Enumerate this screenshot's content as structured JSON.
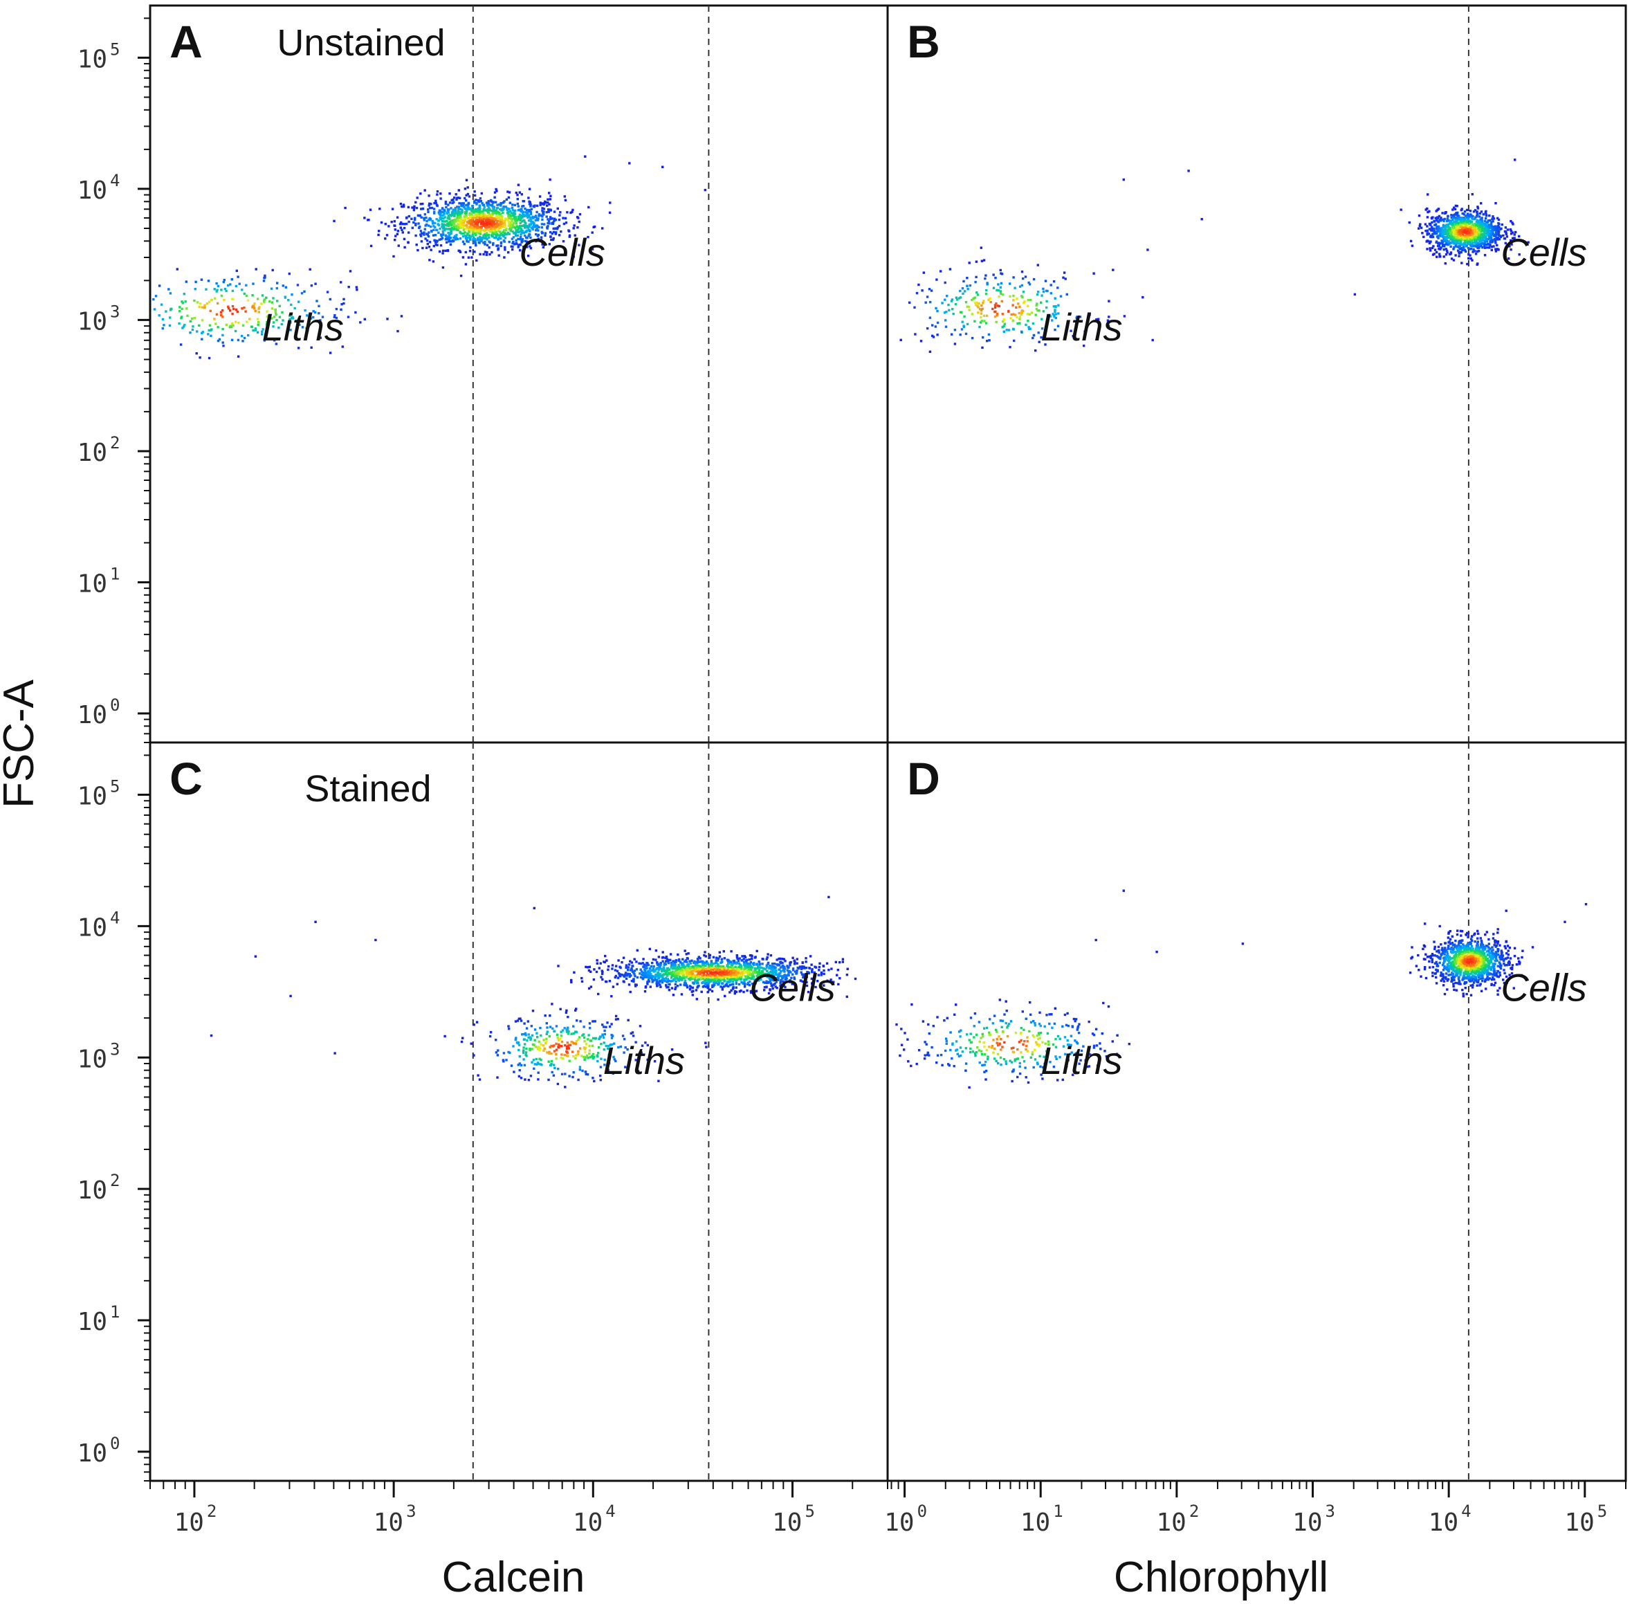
{
  "chart_data": {
    "type": "scatter",
    "figure": {
      "ylabel": "FSC-A",
      "xlabels": [
        "Calcein",
        "Chlorophyll"
      ]
    },
    "panels": [
      {
        "id": "A",
        "letter": "A",
        "note": "Unstained",
        "xlabel": "Calcein",
        "ylabel": "FSC-A",
        "xlim": [
          60,
          300000
        ],
        "ylim": [
          0.6,
          250000
        ],
        "xticks": [
          100,
          1000,
          10000,
          100000
        ],
        "yticks": [
          1,
          10,
          100,
          1000,
          10000,
          100000
        ],
        "gates_x": [
          2500,
          38000
        ],
        "populations": [
          {
            "name": "Cells",
            "label": "Cells",
            "center": [
              2800,
              5600
            ],
            "spread": [
              0.2,
              0.1
            ],
            "n": 1400,
            "label_at": [
              7000,
              2600
            ]
          },
          {
            "name": "Liths",
            "label": "Liths",
            "center": [
              150,
              1200
            ],
            "spread": [
              0.3,
              0.15
            ],
            "n": 320,
            "label_at": [
              350,
              700
            ]
          }
        ],
        "outliers": [
          [
            9000,
            18000
          ],
          [
            15000,
            16000
          ],
          [
            22000,
            15000
          ],
          [
            36000,
            10000
          ],
          [
            12000,
            8000
          ],
          [
            6000,
            12000
          ]
        ]
      },
      {
        "id": "B",
        "letter": "B",
        "xlabel": "Chlorophyll",
        "ylabel": "FSC-A",
        "xlim": [
          0.75,
          200000
        ],
        "ylim": [
          0.6,
          250000
        ],
        "xticks": [
          1,
          10,
          100,
          1000,
          10000,
          100000
        ],
        "yticks": [
          1,
          10,
          100,
          1000,
          10000,
          100000
        ],
        "gates_x": [
          14000
        ],
        "populations": [
          {
            "name": "Cells",
            "label": "Cells",
            "center": [
              13000,
              4800
            ],
            "spread": [
              0.14,
              0.08
            ],
            "n": 1100,
            "label_at": [
              50000,
              2600
            ]
          },
          {
            "name": "Liths",
            "label": "Liths",
            "center": [
              5,
              1250
            ],
            "spread": [
              0.35,
              0.14
            ],
            "n": 300,
            "label_at": [
              20,
              700
            ]
          }
        ],
        "outliers": [
          [
            40,
            12000
          ],
          [
            120,
            14000
          ],
          [
            150,
            6000
          ],
          [
            30000,
            17000
          ],
          [
            2000,
            1600
          ],
          [
            60,
            3500
          ]
        ]
      },
      {
        "id": "C",
        "letter": "C",
        "note": "Stained",
        "xlabel": "Calcein",
        "ylabel": "FSC-A",
        "xlim": [
          60,
          300000
        ],
        "ylim": [
          0.6,
          250000
        ],
        "xticks": [
          100,
          1000,
          10000,
          100000
        ],
        "yticks": [
          1,
          10,
          100,
          1000,
          10000,
          100000
        ],
        "gates_x": [
          2500,
          38000
        ],
        "populations": [
          {
            "name": "Cells",
            "label": "Cells",
            "center": [
              40000,
              4500
            ],
            "spread": [
              0.26,
              0.06
            ],
            "n": 1500,
            "label_at": [
              100000,
              2700
            ]
          },
          {
            "name": "Liths",
            "label": "Liths",
            "center": [
              7000,
              1200
            ],
            "spread": [
              0.2,
              0.12
            ],
            "n": 360,
            "label_at": [
              18000,
              750
            ]
          }
        ],
        "outliers": [
          [
            200,
            6000
          ],
          [
            400,
            11000
          ],
          [
            300,
            3000
          ],
          [
            800,
            8000
          ],
          [
            5000,
            14000
          ],
          [
            150000,
            17000
          ],
          [
            120,
            1500
          ],
          [
            500,
            1100
          ]
        ]
      },
      {
        "id": "D",
        "letter": "D",
        "xlabel": "Chlorophyll",
        "ylabel": "FSC-A",
        "xlim": [
          0.75,
          200000
        ],
        "ylim": [
          0.6,
          250000
        ],
        "xticks": [
          1,
          10,
          100,
          1000,
          10000,
          100000
        ],
        "yticks": [
          1,
          10,
          100,
          1000,
          10000,
          100000
        ],
        "gates_x": [
          14000
        ],
        "populations": [
          {
            "name": "Cells",
            "label": "Cells",
            "center": [
              14000,
              5500
            ],
            "spread": [
              0.14,
              0.09
            ],
            "n": 1100,
            "label_at": [
              50000,
              2700
            ]
          },
          {
            "name": "Liths",
            "label": "Liths",
            "center": [
              6,
              1300
            ],
            "spread": [
              0.35,
              0.13
            ],
            "n": 320,
            "label_at": [
              20,
              750
            ]
          }
        ],
        "outliers": [
          [
            40,
            19000
          ],
          [
            70,
            6500
          ],
          [
            300,
            7500
          ],
          [
            100000,
            15000
          ],
          [
            70000,
            11000
          ],
          [
            25,
            8000
          ]
        ]
      }
    ]
  }
}
